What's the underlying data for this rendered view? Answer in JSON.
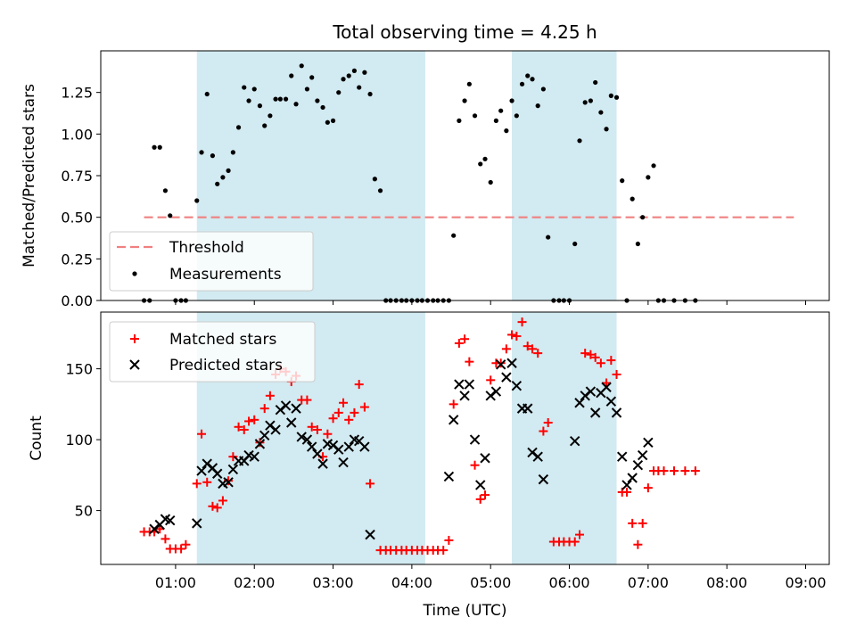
{
  "chart_data": {
    "type": "scatter",
    "title": "Total observing time = 4.25 h",
    "xlabel": "Time (UTC)",
    "xlim": [
      0.05,
      9.3
    ],
    "xticks": [
      {
        "value": 1,
        "label": "01:00"
      },
      {
        "value": 2,
        "label": "02:00"
      },
      {
        "value": 3,
        "label": "03:00"
      },
      {
        "value": 4,
        "label": "04:00"
      },
      {
        "value": 5,
        "label": "05:00"
      },
      {
        "value": 6,
        "label": "06:00"
      },
      {
        "value": 7,
        "label": "07:00"
      },
      {
        "value": 8,
        "label": "08:00"
      },
      {
        "value": 9,
        "label": "09:00"
      }
    ],
    "shaded_intervals": [
      [
        1.27,
        4.17
      ],
      [
        5.27,
        6.6
      ]
    ],
    "shade_color": "#add8e6",
    "top_panel": {
      "ylabel": "Matched/Predicted stars",
      "ylim": [
        0,
        1.5
      ],
      "yticks": [
        "0.00",
        "0.25",
        "0.50",
        "0.75",
        "1.00",
        "1.25"
      ],
      "threshold": {
        "name": "Threshold",
        "y": 0.5,
        "x_range": [
          0.6,
          8.85
        ],
        "color": "#f08080"
      },
      "measurements": {
        "name": "Measurements",
        "color": "#000000",
        "points": [
          [
            0.6,
            0
          ],
          [
            0.67,
            0
          ],
          [
            0.73,
            0.92
          ],
          [
            0.8,
            0.92
          ],
          [
            0.87,
            0.66
          ],
          [
            0.93,
            0.51
          ],
          [
            1.0,
            0
          ],
          [
            1.07,
            0
          ],
          [
            1.13,
            0
          ],
          [
            1.27,
            0.6
          ],
          [
            1.33,
            0.89
          ],
          [
            1.4,
            1.24
          ],
          [
            1.47,
            0.87
          ],
          [
            1.53,
            0.7
          ],
          [
            1.6,
            0.74
          ],
          [
            1.67,
            0.78
          ],
          [
            1.73,
            0.89
          ],
          [
            1.8,
            1.04
          ],
          [
            1.87,
            1.28
          ],
          [
            1.93,
            1.2
          ],
          [
            2.0,
            1.27
          ],
          [
            2.07,
            1.17
          ],
          [
            2.13,
            1.05
          ],
          [
            2.2,
            1.11
          ],
          [
            2.27,
            1.21
          ],
          [
            2.33,
            1.21
          ],
          [
            2.4,
            1.21
          ],
          [
            2.47,
            1.35
          ],
          [
            2.53,
            1.18
          ],
          [
            2.6,
            1.41
          ],
          [
            2.67,
            1.27
          ],
          [
            2.73,
            1.34
          ],
          [
            2.8,
            1.2
          ],
          [
            2.87,
            1.16
          ],
          [
            2.93,
            1.07
          ],
          [
            3.0,
            1.08
          ],
          [
            3.07,
            1.25
          ],
          [
            3.13,
            1.33
          ],
          [
            3.2,
            1.35
          ],
          [
            3.27,
            1.38
          ],
          [
            3.33,
            1.28
          ],
          [
            3.4,
            1.37
          ],
          [
            3.47,
            1.24
          ],
          [
            3.53,
            0.73
          ],
          [
            3.6,
            0.66
          ],
          [
            3.67,
            0
          ],
          [
            3.73,
            0
          ],
          [
            3.8,
            0
          ],
          [
            3.87,
            0
          ],
          [
            3.93,
            0
          ],
          [
            4.0,
            0
          ],
          [
            4.07,
            0
          ],
          [
            4.13,
            0
          ],
          [
            4.2,
            0
          ],
          [
            4.27,
            0
          ],
          [
            4.33,
            0
          ],
          [
            4.4,
            0
          ],
          [
            4.47,
            0
          ],
          [
            4.53,
            0.39
          ],
          [
            4.6,
            1.08
          ],
          [
            4.67,
            1.2
          ],
          [
            4.73,
            1.3
          ],
          [
            4.8,
            1.11
          ],
          [
            4.87,
            0.82
          ],
          [
            4.93,
            0.85
          ],
          [
            5.0,
            0.71
          ],
          [
            5.07,
            1.08
          ],
          [
            5.13,
            1.14
          ],
          [
            5.2,
            1.02
          ],
          [
            5.27,
            1.2
          ],
          [
            5.33,
            1.11
          ],
          [
            5.4,
            1.3
          ],
          [
            5.47,
            1.35
          ],
          [
            5.53,
            1.33
          ],
          [
            5.6,
            1.17
          ],
          [
            5.67,
            1.27
          ],
          [
            5.73,
            0.38
          ],
          [
            5.8,
            0
          ],
          [
            5.87,
            0
          ],
          [
            5.93,
            0
          ],
          [
            6.0,
            0
          ],
          [
            6.07,
            0.34
          ],
          [
            6.13,
            0.96
          ],
          [
            6.2,
            1.19
          ],
          [
            6.27,
            1.2
          ],
          [
            6.33,
            1.31
          ],
          [
            6.4,
            1.13
          ],
          [
            6.47,
            1.03
          ],
          [
            6.53,
            1.23
          ],
          [
            6.6,
            1.22
          ],
          [
            6.67,
            0.72
          ],
          [
            6.73,
            0
          ],
          [
            6.8,
            0.61
          ],
          [
            6.87,
            0.34
          ],
          [
            6.93,
            0.5
          ],
          [
            7.0,
            0.74
          ],
          [
            7.07,
            0.81
          ],
          [
            7.13,
            0
          ],
          [
            7.2,
            0
          ],
          [
            7.33,
            0
          ],
          [
            7.47,
            0
          ],
          [
            7.6,
            0
          ]
        ]
      }
    },
    "bottom_panel": {
      "ylabel": "Count",
      "ylim": [
        12,
        190
      ],
      "yticks": [
        "50",
        "100",
        "150"
      ],
      "matched": {
        "name": "Matched stars",
        "color": "#ff0000",
        "points": [
          [
            0.6,
            35
          ],
          [
            0.67,
            35
          ],
          [
            0.73,
            35
          ],
          [
            0.8,
            37
          ],
          [
            0.87,
            30
          ],
          [
            0.93,
            23
          ],
          [
            1.0,
            23
          ],
          [
            1.07,
            23
          ],
          [
            1.13,
            26
          ],
          [
            1.27,
            69
          ],
          [
            1.33,
            104
          ],
          [
            1.4,
            70
          ],
          [
            1.47,
            53
          ],
          [
            1.53,
            52
          ],
          [
            1.6,
            57
          ],
          [
            1.67,
            71
          ],
          [
            1.73,
            88
          ],
          [
            1.8,
            109
          ],
          [
            1.87,
            107
          ],
          [
            1.93,
            113
          ],
          [
            2.0,
            114
          ],
          [
            2.07,
            98
          ],
          [
            2.13,
            122
          ],
          [
            2.2,
            131
          ],
          [
            2.27,
            146
          ],
          [
            2.33,
            150
          ],
          [
            2.4,
            148
          ],
          [
            2.47,
            141
          ],
          [
            2.53,
            145
          ],
          [
            2.6,
            128
          ],
          [
            2.67,
            128
          ],
          [
            2.73,
            109
          ],
          [
            2.8,
            107
          ],
          [
            2.87,
            88
          ],
          [
            2.93,
            104
          ],
          [
            3.0,
            115
          ],
          [
            3.07,
            119
          ],
          [
            3.13,
            126
          ],
          [
            3.2,
            114
          ],
          [
            3.27,
            119
          ],
          [
            3.33,
            139
          ],
          [
            3.4,
            123
          ],
          [
            3.47,
            69
          ],
          [
            3.6,
            22
          ],
          [
            3.67,
            22
          ],
          [
            3.73,
            22
          ],
          [
            3.8,
            22
          ],
          [
            3.87,
            22
          ],
          [
            3.93,
            22
          ],
          [
            4.0,
            22
          ],
          [
            4.07,
            22
          ],
          [
            4.13,
            22
          ],
          [
            4.2,
            22
          ],
          [
            4.27,
            22
          ],
          [
            4.33,
            22
          ],
          [
            4.4,
            22
          ],
          [
            4.47,
            29
          ],
          [
            4.53,
            125
          ],
          [
            4.6,
            168
          ],
          [
            4.67,
            171
          ],
          [
            4.73,
            155
          ],
          [
            4.8,
            82
          ],
          [
            4.87,
            58
          ],
          [
            4.93,
            61
          ],
          [
            5.0,
            142
          ],
          [
            5.07,
            154
          ],
          [
            5.13,
            154
          ],
          [
            5.2,
            164
          ],
          [
            5.27,
            174
          ],
          [
            5.33,
            173
          ],
          [
            5.4,
            183
          ],
          [
            5.47,
            166
          ],
          [
            5.53,
            164
          ],
          [
            5.6,
            161
          ],
          [
            5.67,
            106
          ],
          [
            5.73,
            112
          ],
          [
            5.8,
            28
          ],
          [
            5.87,
            28
          ],
          [
            5.93,
            28
          ],
          [
            6.0,
            28
          ],
          [
            6.07,
            28
          ],
          [
            6.13,
            33
          ],
          [
            6.2,
            161
          ],
          [
            6.27,
            160
          ],
          [
            6.33,
            158
          ],
          [
            6.4,
            154
          ],
          [
            6.47,
            140
          ],
          [
            6.53,
            156
          ],
          [
            6.6,
            146
          ],
          [
            6.67,
            63
          ],
          [
            6.73,
            63
          ],
          [
            6.8,
            41
          ],
          [
            6.87,
            26
          ],
          [
            6.93,
            41
          ],
          [
            7.0,
            66
          ],
          [
            7.07,
            78
          ],
          [
            7.13,
            78
          ],
          [
            7.2,
            78
          ],
          [
            7.33,
            78
          ],
          [
            7.47,
            78
          ],
          [
            7.6,
            78
          ]
        ]
      },
      "predicted": {
        "name": "Predicted stars",
        "color": "#000000",
        "points": [
          [
            0.73,
            37
          ],
          [
            0.8,
            40
          ],
          [
            0.87,
            44
          ],
          [
            0.93,
            43
          ],
          [
            1.27,
            41
          ],
          [
            1.33,
            78
          ],
          [
            1.4,
            83
          ],
          [
            1.47,
            80
          ],
          [
            1.53,
            76
          ],
          [
            1.6,
            69
          ],
          [
            1.67,
            70
          ],
          [
            1.73,
            79
          ],
          [
            1.8,
            85
          ],
          [
            1.87,
            85
          ],
          [
            1.93,
            89
          ],
          [
            2.0,
            88
          ],
          [
            2.07,
            97
          ],
          [
            2.13,
            103
          ],
          [
            2.2,
            110
          ],
          [
            2.27,
            107
          ],
          [
            2.33,
            121
          ],
          [
            2.4,
            124
          ],
          [
            2.47,
            112
          ],
          [
            2.53,
            122
          ],
          [
            2.6,
            102
          ],
          [
            2.67,
            100
          ],
          [
            2.73,
            95
          ],
          [
            2.8,
            90
          ],
          [
            2.87,
            83
          ],
          [
            2.93,
            97
          ],
          [
            3.0,
            96
          ],
          [
            3.07,
            93
          ],
          [
            3.13,
            84
          ],
          [
            3.2,
            95
          ],
          [
            3.27,
            100
          ],
          [
            3.33,
            99
          ],
          [
            3.4,
            95
          ],
          [
            3.47,
            33
          ],
          [
            4.47,
            74
          ],
          [
            4.53,
            114
          ],
          [
            4.6,
            139
          ],
          [
            4.67,
            131
          ],
          [
            4.73,
            139
          ],
          [
            4.8,
            100
          ],
          [
            4.87,
            68
          ],
          [
            4.93,
            87
          ],
          [
            5.0,
            131
          ],
          [
            5.07,
            134
          ],
          [
            5.13,
            153
          ],
          [
            5.2,
            144
          ],
          [
            5.27,
            154
          ],
          [
            5.33,
            138
          ],
          [
            5.4,
            122
          ],
          [
            5.47,
            122
          ],
          [
            5.53,
            91
          ],
          [
            5.6,
            88
          ],
          [
            5.67,
            72
          ],
          [
            6.07,
            99
          ],
          [
            6.13,
            126
          ],
          [
            6.2,
            131
          ],
          [
            6.27,
            134
          ],
          [
            6.33,
            119
          ],
          [
            6.4,
            133
          ],
          [
            6.47,
            137
          ],
          [
            6.53,
            127
          ],
          [
            6.6,
            119
          ],
          [
            6.67,
            88
          ],
          [
            6.73,
            68
          ],
          [
            6.8,
            73
          ],
          [
            6.87,
            82
          ],
          [
            6.93,
            89
          ],
          [
            7.0,
            98
          ]
        ]
      }
    }
  }
}
